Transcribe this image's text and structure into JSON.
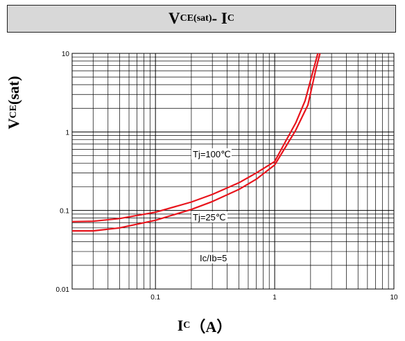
{
  "chart_data": {
    "type": "line",
    "title": {
      "main": "V",
      "sub": "CE(sat)",
      "dash": "- I",
      "sub2": "C"
    },
    "ylabel": {
      "main": "V",
      "sub": "CE",
      "rest": "(sat)"
    },
    "xlabel": {
      "main": "I",
      "sub": "C",
      "rest": "（A）"
    },
    "x_scale": "log",
    "y_scale": "log",
    "xlim": [
      0.02,
      10
    ],
    "ylim": [
      0.01,
      10
    ],
    "grid": true,
    "x_ticks": [
      "0.1",
      "1",
      "10"
    ],
    "y_ticks": [
      "0.01",
      "0.1",
      "1",
      "10"
    ],
    "annotations": [
      "Tj=100℃",
      "Tj=25℃",
      "Ic/Ib=5"
    ],
    "series": [
      {
        "name": "Tj=100℃",
        "color": "#e8141c",
        "points": [
          [
            0.02,
            0.072
          ],
          [
            0.03,
            0.073
          ],
          [
            0.05,
            0.079
          ],
          [
            0.1,
            0.095
          ],
          [
            0.2,
            0.128
          ],
          [
            0.3,
            0.16
          ],
          [
            0.5,
            0.225
          ],
          [
            0.7,
            0.3
          ],
          [
            1.0,
            0.42
          ],
          [
            1.2,
            0.7
          ],
          [
            1.5,
            1.3
          ],
          [
            1.8,
            2.5
          ],
          [
            2.1,
            6
          ],
          [
            2.3,
            10
          ]
        ]
      },
      {
        "name": "Tj=25℃",
        "color": "#e8141c",
        "points": [
          [
            0.02,
            0.055
          ],
          [
            0.03,
            0.055
          ],
          [
            0.05,
            0.06
          ],
          [
            0.1,
            0.075
          ],
          [
            0.2,
            0.103
          ],
          [
            0.3,
            0.13
          ],
          [
            0.5,
            0.185
          ],
          [
            0.7,
            0.25
          ],
          [
            1.0,
            0.38
          ],
          [
            1.2,
            0.6
          ],
          [
            1.5,
            1.05
          ],
          [
            1.9,
            2.2
          ],
          [
            2.2,
            6
          ],
          [
            2.4,
            10
          ]
        ]
      }
    ]
  }
}
